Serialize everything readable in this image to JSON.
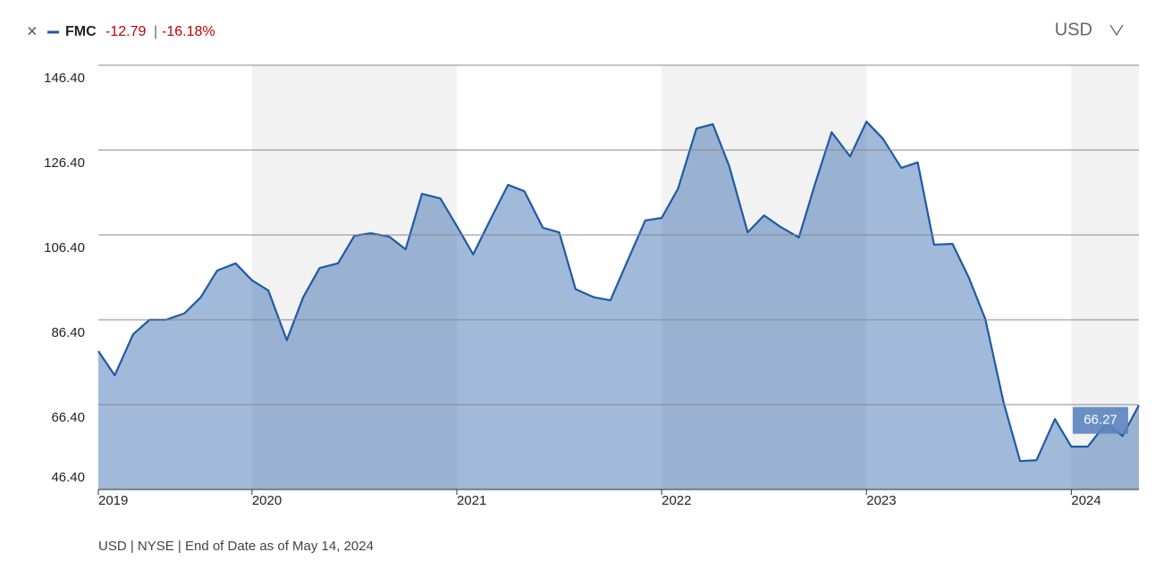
{
  "chart_data": {
    "type": "area",
    "series_name": "FMC",
    "change": "-12.79",
    "change_pct": "-16.18%",
    "currency": "USD",
    "footnote": "USD | NYSE | End of Date as of May 14, 2024",
    "x": [
      2019.25,
      2019.33,
      2019.42,
      2019.5,
      2019.58,
      2019.67,
      2019.75,
      2019.83,
      2019.92,
      2020,
      2020.08,
      2020.17,
      2020.25,
      2020.33,
      2020.42,
      2020.5,
      2020.58,
      2020.67,
      2020.75,
      2020.83,
      2020.92,
      2021,
      2021.08,
      2021.17,
      2021.25,
      2021.33,
      2021.42,
      2021.5,
      2021.58,
      2021.67,
      2021.75,
      2021.83,
      2021.92,
      2022,
      2022.08,
      2022.17,
      2022.25,
      2022.33,
      2022.42,
      2022.5,
      2022.58,
      2022.67,
      2022.75,
      2022.83,
      2022.92,
      2023,
      2023.08,
      2023.17,
      2023.25,
      2023.33,
      2023.42,
      2023.5,
      2023.58,
      2023.67,
      2023.75,
      2023.83,
      2023.92,
      2024,
      2024.08,
      2024.17,
      2024.25,
      2024.33
    ],
    "series": [
      {
        "name": "FMC",
        "color": "#1f5aa6",
        "values": [
          79.0,
          73.3,
          83.0,
          86.4,
          86.4,
          87.9,
          91.7,
          98.0,
          99.7,
          95.7,
          93.3,
          81.6,
          91.7,
          98.6,
          99.7,
          106.2,
          106.8,
          106.0,
          103.0,
          116.1,
          115.0,
          108.5,
          101.8,
          110.6,
          118.2,
          116.7,
          108.1,
          107.0,
          93.6,
          91.7,
          91.0,
          99.9,
          109.8,
          110.4,
          117.3,
          131.5,
          132.5,
          122.6,
          107.0,
          111.0,
          108.3,
          105.8,
          118.6,
          130.6,
          124.9,
          133.1,
          129.1,
          122.2,
          123.5,
          104.1,
          104.3,
          96.3,
          86.6,
          66.8,
          53.1,
          53.3,
          63.0,
          56.5,
          56.5,
          62.0,
          59.0,
          66.27
        ]
      }
    ],
    "xlim": [
      2019.25,
      2024.33
    ],
    "xticks": [
      {
        "value": 2019.25,
        "label": "2019"
      },
      2020,
      2021,
      2022,
      2023,
      2024
    ],
    "ylim": [
      46.4,
      146.4
    ],
    "yticks": [
      {
        "value": 46.4,
        "label": "46.40"
      },
      {
        "value": 66.4,
        "label": "66.40"
      },
      {
        "value": 86.4,
        "label": "86.40"
      },
      {
        "value": 106.4,
        "label": "106.40"
      },
      {
        "value": 126.4,
        "label": "126.40"
      },
      {
        "value": 146.4,
        "label": "146.40"
      }
    ],
    "grid": true,
    "alternate_year_shading": true
  }
}
